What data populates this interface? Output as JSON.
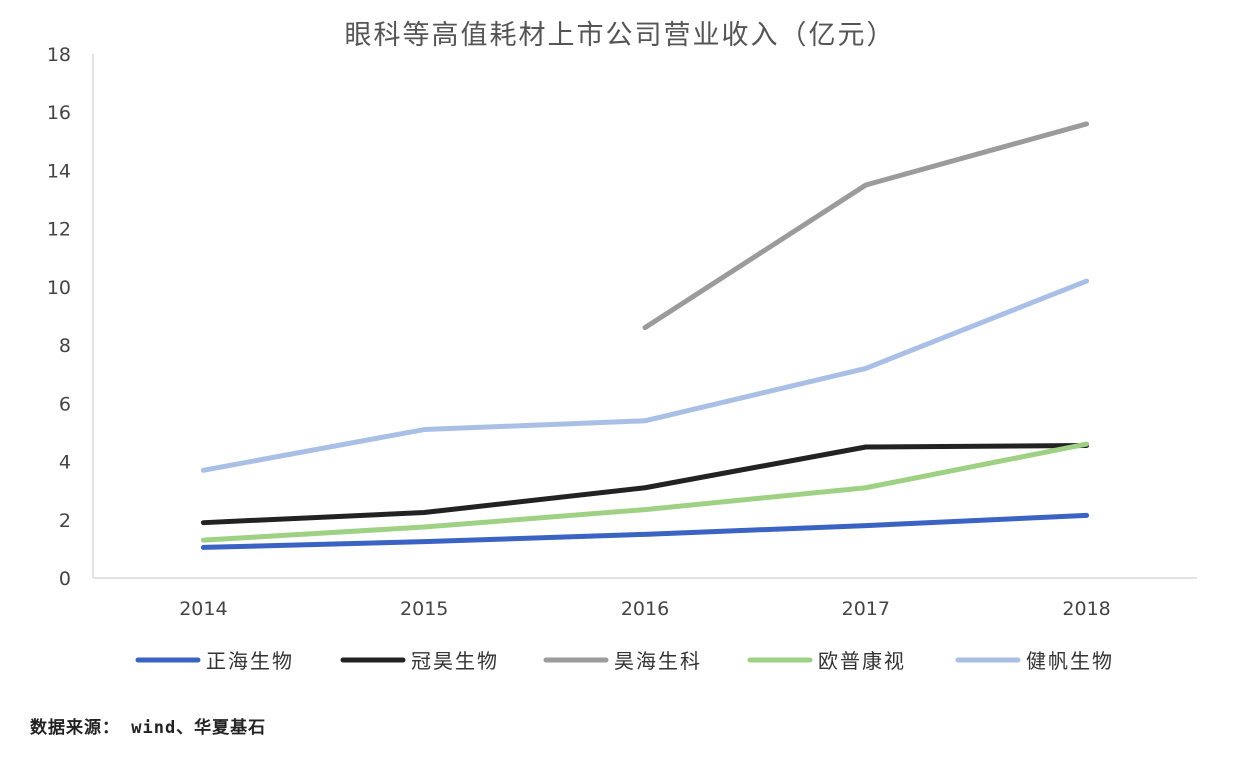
{
  "chart_data": {
    "type": "line",
    "title": "眼科等高值耗材上市公司营业收入（亿元）",
    "xlabel": "",
    "ylabel": "",
    "categories": [
      "2014",
      "2015",
      "2016",
      "2017",
      "2018"
    ],
    "ylim": [
      0,
      18
    ],
    "yticks": [
      0,
      2,
      4,
      6,
      8,
      10,
      12,
      14,
      16,
      18
    ],
    "grid": false,
    "legend_position": "bottom",
    "series": [
      {
        "name": "正海生物",
        "color": "#3a63c4",
        "values": [
          1.05,
          1.25,
          1.5,
          1.8,
          2.15
        ]
      },
      {
        "name": "冠昊生物",
        "color": "#222222",
        "values": [
          1.9,
          2.25,
          3.1,
          4.5,
          4.55
        ]
      },
      {
        "name": "昊海生科",
        "color": "#9b9b9b",
        "values": [
          null,
          null,
          8.6,
          13.5,
          15.6
        ]
      },
      {
        "name": "欧普康视",
        "color": "#9fd184",
        "values": [
          1.3,
          1.75,
          2.35,
          3.1,
          4.6
        ]
      },
      {
        "name": "健帆生物",
        "color": "#a9bfe6",
        "values": [
          3.7,
          5.1,
          5.4,
          7.2,
          10.2
        ]
      }
    ]
  },
  "source_text": "数据来源： wind、华夏基石"
}
